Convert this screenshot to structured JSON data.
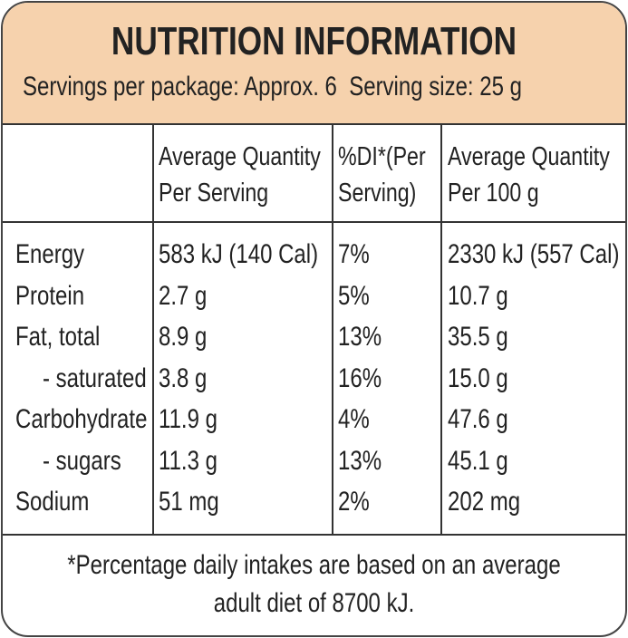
{
  "header": {
    "title": "NUTRITION INFORMATION",
    "servings": "Servings per package: Approx. 6",
    "serving_size": "Serving size: 25 g"
  },
  "table": {
    "columns": [
      "Average Quantity Per Serving",
      "%DI*(Per Serving)",
      "Average Quantity Per 100 g"
    ],
    "rows": [
      [
        "Energy",
        "583 kJ (140 Cal)",
        "7%",
        "2330 kJ (557 Cal)"
      ],
      [
        "Protein",
        "2.7 g",
        "5%",
        "10.7 g"
      ],
      [
        "Fat, total",
        "8.9 g",
        "13%",
        "35.5 g"
      ],
      [
        "- saturated",
        "3.8 g",
        "16%",
        "15.0 g"
      ],
      [
        "Carbohydrate",
        "11.9 g",
        "4%",
        "47.6 g"
      ],
      [
        "- sugars",
        "11.3 g",
        "13%",
        "45.1 g"
      ],
      [
        "Sodium",
        "51 mg",
        "2%",
        "202 mg"
      ]
    ]
  },
  "footnote": [
    "*Percentage daily intakes are based on an average",
    "adult diet of 8700 kJ."
  ]
}
